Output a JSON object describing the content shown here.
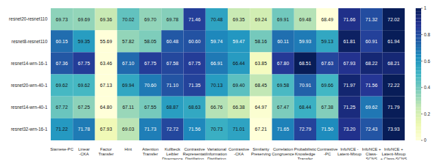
{
  "chart_data": {
    "type": "heatmap",
    "x_categories": [
      "Siamese-PC",
      "Linear\n-CKA",
      "Factor\nTransfer",
      "Hint",
      "Attention\nTransfer",
      "Kullbeck\nLeibler\nDivergence",
      "Contrastive\nRepresentati\nDistillation",
      "Variational\nInformation\nDistillation",
      "Contrastive\n-CKA",
      "Similarity\nPreserving",
      "Correlation\nCongruence",
      "Probabilistic\nKnowledge\nTransfer",
      "Contrastive\n-PC",
      "InfoNCE -\nLatent-Mixup",
      "InfoNCE +\nClass-\nSCNS",
      "InfoNCE +\nLatent-Mixup\n+ Class-SCNS"
    ],
    "y_categories": [
      "resnet20-resnet110",
      "resnet8-resnet110",
      "resnet14-wrn-16-1",
      "resnet20-wrn-40-1",
      "resnet14-wrn-40-1",
      "resnet32-wrn-16-1"
    ],
    "cells": [
      [
        69.73,
        69.69,
        69.36,
        70.02,
        69.7,
        69.78,
        71.46,
        70.48,
        69.35,
        69.24,
        69.91,
        69.48,
        68.49,
        71.66,
        71.32,
        72.02
      ],
      [
        60.15,
        59.35,
        55.69,
        57.82,
        58.05,
        60.48,
        60.6,
        59.74,
        59.47,
        58.16,
        60.11,
        59.93,
        59.13,
        61.81,
        60.91,
        61.94
      ],
      [
        67.36,
        67.75,
        63.46,
        67.1,
        67.75,
        67.58,
        67.75,
        66.91,
        66.44,
        63.85,
        67.8,
        68.51,
        67.63,
        67.93,
        68.22,
        68.21
      ],
      [
        69.62,
        69.62,
        67.13,
        69.94,
        70.6,
        71.1,
        71.35,
        70.13,
        69.4,
        68.45,
        69.58,
        70.91,
        69.66,
        71.97,
        71.56,
        72.22
      ],
      [
        67.72,
        67.25,
        64.8,
        67.11,
        67.55,
        68.87,
        68.63,
        66.76,
        66.38,
        64.97,
        67.47,
        68.44,
        67.38,
        71.25,
        69.62,
        71.79
      ],
      [
        71.22,
        71.78,
        67.93,
        69.03,
        71.73,
        72.72,
        71.56,
        70.73,
        71.01,
        67.21,
        71.65,
        72.79,
        71.5,
        73.2,
        72.43,
        73.93
      ]
    ],
    "value_labels": [
      [
        "69.73",
        "69.69",
        "69.36",
        "70.02",
        "69.70",
        "69.78",
        "71.46",
        "70.48",
        "69.35",
        "69.24",
        "69.91",
        "69.48",
        "68.49",
        "71.66",
        "71.32",
        "72.02"
      ],
      [
        "60.15",
        "59.35",
        "55.69",
        "57.82",
        "58.05",
        "60.48",
        "60.60",
        "59.74",
        "59.47",
        "58.16",
        "60.11",
        "59.93",
        "59.13",
        "61.81",
        "60.91",
        "61.94"
      ],
      [
        "67.36",
        "67.75",
        "63.46",
        "67.10",
        "67.75",
        "67.58",
        "67.75",
        "66.91",
        "66.44",
        "63.85",
        "67.80",
        "68.51",
        "67.63",
        "67.93",
        "68.22",
        "68.21"
      ],
      [
        "69.62",
        "69.62",
        "67.13",
        "69.94",
        "70.60",
        "71.10",
        "71.35",
        "70.13",
        "69.40",
        "68.45",
        "69.58",
        "70.91",
        "69.66",
        "71.97",
        "71.56",
        "72.22"
      ],
      [
        "67.72",
        "67.25",
        "64.80",
        "67.11",
        "67.55",
        "68.87",
        "68.63",
        "66.76",
        "66.38",
        "64.97",
        "67.47",
        "68.44",
        "67.38",
        "71.25",
        "69.62",
        "71.79"
      ],
      [
        "71.22",
        "71.78",
        "67.93",
        "69.03",
        "71.73",
        "72.72",
        "71.56",
        "70.73",
        "71.01",
        "67.21",
        "71.65",
        "72.79",
        "71.50",
        "73.20",
        "72.43",
        "73.93"
      ]
    ],
    "data_labels": true,
    "colorbar": {
      "range": [
        0,
        1
      ],
      "ticks": [
        0,
        0.2,
        0.4,
        0.6,
        0.8,
        1
      ]
    }
  }
}
